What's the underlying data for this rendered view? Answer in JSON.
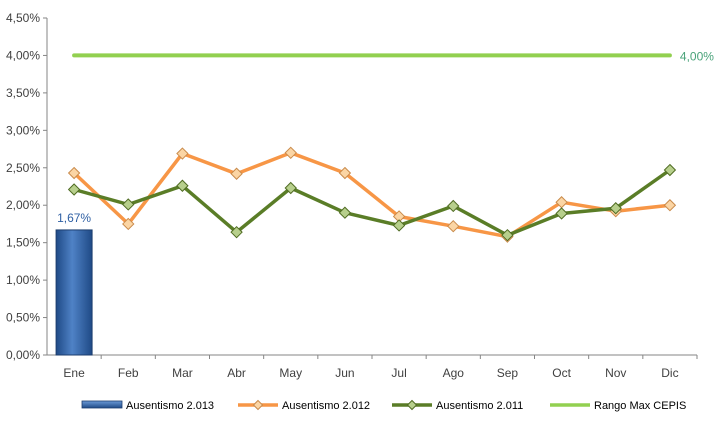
{
  "chart_data": {
    "type": "line",
    "categories": [
      "Ene",
      "Feb",
      "Mar",
      "Abr",
      "May",
      "Jun",
      "Jul",
      "Ago",
      "Sep",
      "Oct",
      "Nov",
      "Dic"
    ],
    "y_ticks": [
      "0,00%",
      "0,50%",
      "1,00%",
      "1,50%",
      "2,00%",
      "2,50%",
      "3,00%",
      "3,50%",
      "4,00%",
      "4,50%"
    ],
    "ylim": [
      0,
      4.5
    ],
    "grid": false,
    "legend_position": "bottom",
    "series": [
      {
        "name": "Ausentismo 2.013",
        "kind": "bar",
        "color": "#2e5fa3",
        "values": [
          1.67,
          null,
          null,
          null,
          null,
          null,
          null,
          null,
          null,
          null,
          null,
          null
        ],
        "data_labels": [
          "1,67%"
        ]
      },
      {
        "name": "Ausentismo 2.012",
        "kind": "line",
        "color": "#f79646",
        "values": [
          2.43,
          1.75,
          2.69,
          2.42,
          2.7,
          2.43,
          1.85,
          1.72,
          1.58,
          2.04,
          1.92,
          2.0
        ]
      },
      {
        "name": "Ausentismo 2.011",
        "kind": "line",
        "color": "#5a7d27",
        "values": [
          2.21,
          2.01,
          2.26,
          1.64,
          2.23,
          1.9,
          1.73,
          1.99,
          1.6,
          1.89,
          1.96,
          2.47
        ]
      },
      {
        "name": "Rango Max CEPIS",
        "kind": "line",
        "color": "#92d050",
        "values": [
          4.0,
          4.0,
          4.0,
          4.0,
          4.0,
          4.0,
          4.0,
          4.0,
          4.0,
          4.0,
          4.0,
          4.0
        ],
        "data_labels": [
          "4,00%"
        ]
      }
    ]
  }
}
